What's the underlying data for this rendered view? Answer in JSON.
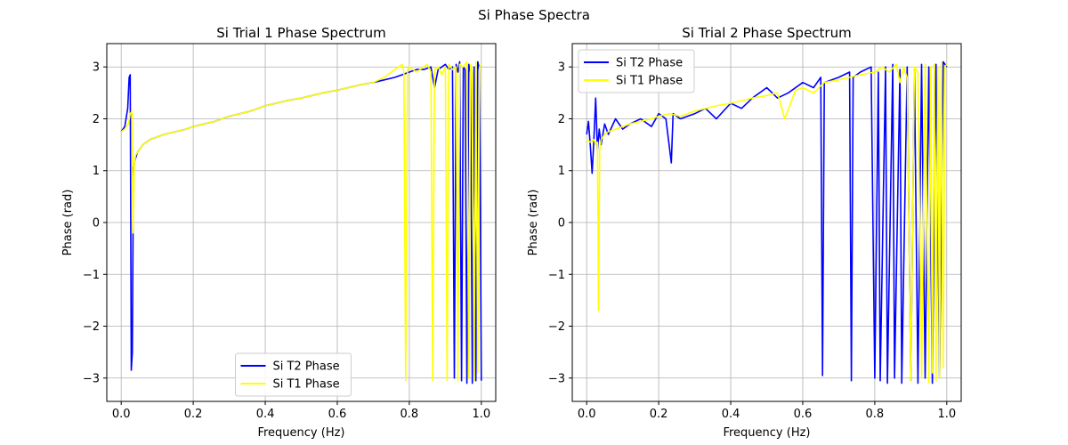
{
  "figure": {
    "suptitle": "Si Phase Spectra"
  },
  "chart_data": [
    {
      "type": "line",
      "title": "Si Trial 1 Phase Spectrum",
      "xlabel": "Frequency (Hz)",
      "ylabel": "Phase (rad)",
      "xlim": [
        -0.04,
        1.04
      ],
      "ylim": [
        -3.45,
        3.45
      ],
      "xticks": [
        0.0,
        0.2,
        0.4,
        0.6,
        0.8,
        1.0
      ],
      "xtick_labels": [
        "0.0",
        "0.2",
        "0.4",
        "0.6",
        "0.8",
        "1.0"
      ],
      "yticks": [
        -3,
        -2,
        -1,
        0,
        1,
        2,
        3
      ],
      "ytick_labels": [
        "−3",
        "−2",
        "−1",
        "0",
        "1",
        "2",
        "3"
      ],
      "grid": true,
      "legend_position": "lower-center",
      "series": [
        {
          "name": "Si T2 Phase",
          "color": "#0000ff",
          "x": [
            0.0,
            0.01,
            0.018,
            0.022,
            0.025,
            0.028,
            0.031,
            0.034,
            0.038,
            0.045,
            0.06,
            0.08,
            0.1,
            0.12,
            0.15,
            0.18,
            0.2,
            0.23,
            0.26,
            0.3,
            0.33,
            0.36,
            0.4,
            0.43,
            0.46,
            0.5,
            0.53,
            0.56,
            0.6,
            0.63,
            0.66,
            0.7,
            0.73,
            0.76,
            0.78,
            0.8,
            0.82,
            0.84,
            0.86,
            0.87,
            0.88,
            0.9,
            0.91,
            0.92,
            0.925,
            0.93,
            0.935,
            0.94,
            0.945,
            0.95,
            0.955,
            0.96,
            0.965,
            0.97,
            0.975,
            0.98,
            0.985,
            0.99,
            0.995,
            1.0
          ],
          "y": [
            1.75,
            1.85,
            2.2,
            2.8,
            2.85,
            -2.85,
            -2.5,
            1.0,
            1.2,
            1.35,
            1.5,
            1.6,
            1.65,
            1.7,
            1.75,
            1.8,
            1.85,
            1.9,
            1.95,
            2.05,
            2.1,
            2.15,
            2.25,
            2.3,
            2.35,
            2.4,
            2.45,
            2.5,
            2.55,
            2.6,
            2.65,
            2.7,
            2.75,
            2.8,
            2.85,
            2.9,
            2.95,
            2.95,
            3.0,
            2.6,
            2.95,
            3.05,
            2.95,
            3.0,
            -3.0,
            3.05,
            2.9,
            3.1,
            -3.05,
            3.0,
            2.95,
            -3.1,
            3.05,
            2.9,
            -3.1,
            3.0,
            -3.05,
            3.1,
            2.95,
            -3.05
          ]
        },
        {
          "name": "Si T1 Phase",
          "color": "#ffff00",
          "x": [
            0.0,
            0.01,
            0.02,
            0.025,
            0.03,
            0.033,
            0.036,
            0.04,
            0.05,
            0.06,
            0.08,
            0.1,
            0.12,
            0.15,
            0.18,
            0.2,
            0.23,
            0.26,
            0.3,
            0.33,
            0.36,
            0.4,
            0.43,
            0.46,
            0.5,
            0.53,
            0.56,
            0.6,
            0.63,
            0.66,
            0.7,
            0.73,
            0.75,
            0.77,
            0.78,
            0.785,
            0.79,
            0.795,
            0.8,
            0.82,
            0.84,
            0.85,
            0.86,
            0.865,
            0.87,
            0.88,
            0.89,
            0.9,
            0.905,
            0.91,
            0.92,
            0.93,
            0.935,
            0.94,
            0.95,
            0.96,
            0.965,
            0.97,
            0.975,
            0.98,
            0.985,
            0.99,
            0.995,
            1.0
          ],
          "y": [
            1.75,
            1.8,
            1.9,
            2.1,
            2.15,
            -0.2,
            1.1,
            1.3,
            1.4,
            1.5,
            1.6,
            1.65,
            1.7,
            1.75,
            1.8,
            1.85,
            1.9,
            1.95,
            2.05,
            2.1,
            2.15,
            2.25,
            2.3,
            2.35,
            2.4,
            2.45,
            2.5,
            2.55,
            2.6,
            2.65,
            2.7,
            2.8,
            2.9,
            3.0,
            3.05,
            2.9,
            -3.05,
            2.95,
            3.0,
            2.9,
            3.0,
            3.05,
            2.9,
            -3.05,
            2.95,
            3.0,
            2.85,
            3.0,
            -3.05,
            3.05,
            2.95,
            3.0,
            -3.05,
            3.05,
            3.0,
            3.1,
            -3.0,
            3.05,
            2.9,
            -3.05,
            3.1,
            -2.9,
            3.0,
            3.05
          ]
        }
      ]
    },
    {
      "type": "line",
      "title": "Si Trial 2 Phase Spectrum",
      "xlabel": "Frequency (Hz)",
      "ylabel": "Phase (rad)",
      "xlim": [
        -0.04,
        1.04
      ],
      "ylim": [
        -3.45,
        3.45
      ],
      "xticks": [
        0.0,
        0.2,
        0.4,
        0.6,
        0.8,
        1.0
      ],
      "xtick_labels": [
        "0.0",
        "0.2",
        "0.4",
        "0.6",
        "0.8",
        "1.0"
      ],
      "yticks": [
        -3,
        -2,
        -1,
        0,
        1,
        2,
        3
      ],
      "ytick_labels": [
        "−3",
        "−2",
        "−1",
        "0",
        "1",
        "2",
        "3"
      ],
      "grid": true,
      "legend_position": "upper-left",
      "series": [
        {
          "name": "Si T2 Phase",
          "color": "#0000ff",
          "x": [
            0.0,
            0.005,
            0.01,
            0.015,
            0.02,
            0.025,
            0.03,
            0.035,
            0.04,
            0.05,
            0.06,
            0.08,
            0.1,
            0.12,
            0.15,
            0.18,
            0.2,
            0.22,
            0.235,
            0.24,
            0.26,
            0.3,
            0.33,
            0.36,
            0.4,
            0.43,
            0.46,
            0.5,
            0.53,
            0.56,
            0.6,
            0.63,
            0.65,
            0.655,
            0.66,
            0.7,
            0.73,
            0.735,
            0.74,
            0.76,
            0.79,
            0.8,
            0.81,
            0.815,
            0.83,
            0.835,
            0.85,
            0.855,
            0.87,
            0.875,
            0.89,
            0.9,
            0.91,
            0.92,
            0.93,
            0.94,
            0.95,
            0.96,
            0.97,
            0.98,
            0.99,
            1.0
          ],
          "y": [
            1.7,
            1.95,
            1.5,
            0.95,
            1.6,
            2.4,
            1.4,
            1.8,
            1.5,
            1.9,
            1.7,
            2.0,
            1.8,
            1.9,
            2.0,
            1.85,
            2.1,
            2.0,
            1.15,
            2.1,
            2.0,
            2.1,
            2.2,
            2.0,
            2.3,
            2.2,
            2.4,
            2.6,
            2.4,
            2.5,
            2.7,
            2.6,
            2.8,
            -2.95,
            2.7,
            2.8,
            2.9,
            -3.05,
            2.8,
            2.9,
            3.0,
            -3.0,
            2.9,
            -3.05,
            3.0,
            -3.1,
            3.05,
            -3.0,
            2.95,
            -3.1,
            3.0,
            -3.05,
            2.95,
            -3.1,
            3.05,
            -3.0,
            3.0,
            -3.1,
            3.05,
            -3.0,
            3.1,
            3.0
          ]
        },
        {
          "name": "Si T1 Phase",
          "color": "#ffff00",
          "x": [
            0.0,
            0.01,
            0.02,
            0.025,
            0.03,
            0.033,
            0.036,
            0.04,
            0.05,
            0.06,
            0.08,
            0.1,
            0.12,
            0.15,
            0.18,
            0.2,
            0.23,
            0.26,
            0.3,
            0.33,
            0.36,
            0.4,
            0.43,
            0.46,
            0.5,
            0.53,
            0.55,
            0.58,
            0.6,
            0.63,
            0.66,
            0.7,
            0.73,
            0.76,
            0.8,
            0.82,
            0.84,
            0.86,
            0.87,
            0.88,
            0.89,
            0.9,
            0.91,
            0.92,
            0.93,
            0.94,
            0.95,
            0.955,
            0.96,
            0.965,
            0.97,
            0.975,
            0.98,
            0.985,
            0.99,
            0.995,
            1.0
          ],
          "y": [
            1.6,
            1.55,
            1.6,
            1.5,
            1.55,
            -1.7,
            1.4,
            1.6,
            1.7,
            1.75,
            1.8,
            1.85,
            1.9,
            1.95,
            2.0,
            2.05,
            2.1,
            2.05,
            2.15,
            2.2,
            2.25,
            2.3,
            2.35,
            2.4,
            2.45,
            2.5,
            2.0,
            2.55,
            2.6,
            2.5,
            2.7,
            2.75,
            2.8,
            2.85,
            2.9,
            3.0,
            2.9,
            3.05,
            2.7,
            3.0,
            2.8,
            -3.05,
            3.0,
            2.9,
            -3.0,
            3.05,
            -3.1,
            3.0,
            -2.9,
            3.05,
            -3.05,
            3.0,
            -3.0,
            3.1,
            -2.8,
            3.0,
            3.05
          ]
        }
      ]
    }
  ]
}
